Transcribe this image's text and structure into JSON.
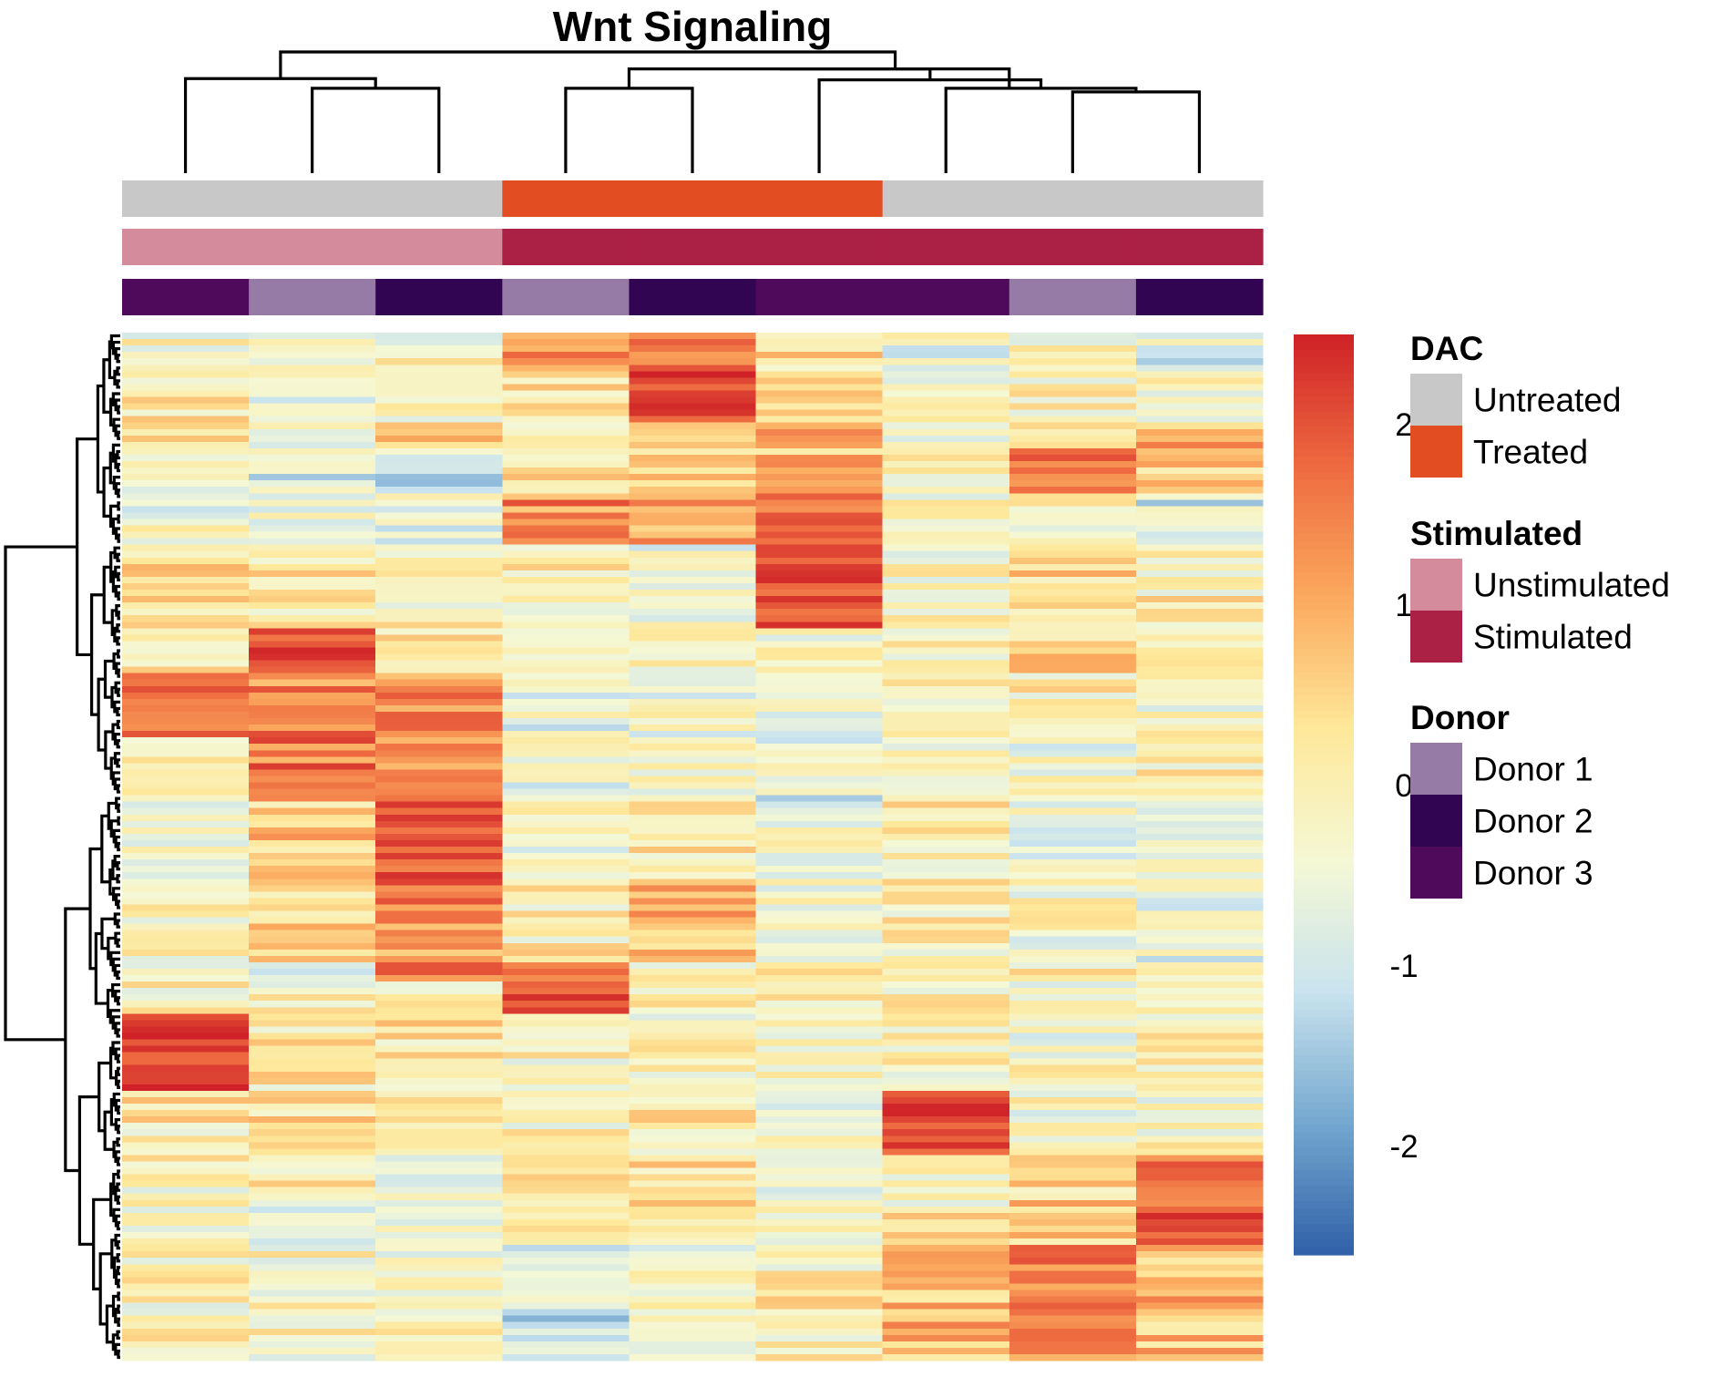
{
  "title": "Wnt Signaling",
  "chart_data": {
    "type": "heatmap",
    "title": "Wnt Signaling",
    "n_columns": 9,
    "n_rows": 160,
    "color_scale": {
      "min": -2.6,
      "max": 2.5,
      "ticks": [
        2,
        1,
        0,
        -1,
        -2
      ],
      "colors": [
        "#3060a8",
        "#74a7cf",
        "#c9e3ee",
        "#f5f8d5",
        "#fee89a",
        "#fba95e",
        "#ee6a40",
        "#cf2127"
      ]
    },
    "annotations": [
      {
        "name": "DAC",
        "values": [
          "Untreated",
          "Untreated",
          "Untreated",
          "Treated",
          "Treated",
          "Treated",
          "Untreated",
          "Untreated",
          "Untreated"
        ],
        "legend": [
          {
            "label": "Untreated",
            "color": "#c8c8c8"
          },
          {
            "label": "Treated",
            "color": "#e24e22"
          }
        ]
      },
      {
        "name": "Stimulated",
        "values": [
          "Unstimulated",
          "Unstimulated",
          "Unstimulated",
          "Stimulated",
          "Stimulated",
          "Stimulated",
          "Stimulated",
          "Stimulated",
          "Stimulated"
        ],
        "legend": [
          {
            "label": "Unstimulated",
            "color": "#d48c9c"
          },
          {
            "label": "Stimulated",
            "color": "#ab2045"
          }
        ]
      },
      {
        "name": "Donor",
        "values": [
          "Donor 3",
          "Donor 1",
          "Donor 2",
          "Donor 1",
          "Donor 2",
          "Donor 3",
          "Donor 3",
          "Donor 1",
          "Donor 2"
        ],
        "legend": [
          {
            "label": "Donor 1",
            "color": "#967ba7"
          },
          {
            "label": "Donor 2",
            "color": "#310552"
          },
          {
            "label": "Donor 3",
            "color": "#4f0a5c"
          }
        ]
      }
    ],
    "row_blocks": [
      {
        "rows": [
          0,
          5
        ],
        "values": [
          -0.2,
          -0.3,
          -0.2,
          1.2,
          1.6,
          0.5,
          -0.5,
          -0.2,
          -0.7
        ]
      },
      {
        "rows": [
          5,
          14
        ],
        "values": [
          0.0,
          -0.4,
          -0.3,
          0.3,
          2.2,
          0.1,
          -0.3,
          -0.1,
          -0.2
        ]
      },
      {
        "rows": [
          14,
          18
        ],
        "values": [
          0.1,
          -0.5,
          0.4,
          0.2,
          0.8,
          1.2,
          -0.6,
          -0.1,
          0.8
        ]
      },
      {
        "rows": [
          18,
          25
        ],
        "values": [
          -0.3,
          -0.8,
          -1.0,
          0.4,
          0.3,
          0.8,
          -0.2,
          1.6,
          0.4
        ]
      },
      {
        "rows": [
          25,
          33
        ],
        "values": [
          -0.4,
          -0.5,
          -0.5,
          1.3,
          0.9,
          1.6,
          -0.2,
          0.0,
          -0.8
        ]
      },
      {
        "rows": [
          33,
          46
        ],
        "values": [
          0.2,
          0.1,
          -0.1,
          0.0,
          -0.4,
          2.0,
          -0.3,
          0.4,
          0.0
        ]
      },
      {
        "rows": [
          46,
          53
        ],
        "values": [
          0.2,
          2.0,
          0.0,
          -0.2,
          0.0,
          -0.2,
          -0.2,
          0.6,
          -0.2
        ]
      },
      {
        "rows": [
          53,
          63
        ],
        "values": [
          1.7,
          1.4,
          1.3,
          -0.6,
          -0.4,
          -0.3,
          -0.2,
          0.0,
          -0.2
        ]
      },
      {
        "rows": [
          63,
          73
        ],
        "values": [
          0.3,
          1.5,
          1.2,
          -0.5,
          -0.3,
          -0.7,
          -0.2,
          -0.4,
          0.0
        ]
      },
      {
        "rows": [
          73,
          86
        ],
        "values": [
          -0.2,
          0.6,
          1.9,
          -0.3,
          0.2,
          -0.5,
          0.1,
          -0.4,
          -0.2
        ]
      },
      {
        "rows": [
          86,
          98
        ],
        "values": [
          -0.2,
          0.4,
          1.3,
          0.0,
          0.9,
          -0.3,
          -0.1,
          -0.3,
          -0.6
        ]
      },
      {
        "rows": [
          98,
          101
        ],
        "values": [
          -0.1,
          -0.8,
          1.6,
          1.8,
          -0.1,
          0.0,
          -0.2,
          0.0,
          0.0
        ]
      },
      {
        "rows": [
          101,
          106
        ],
        "values": [
          -0.1,
          -0.1,
          -0.3,
          2.0,
          0.0,
          -0.1,
          0.0,
          -0.2,
          -0.1
        ]
      },
      {
        "rows": [
          106,
          118
        ],
        "values": [
          2.2,
          0.1,
          0.2,
          -0.1,
          -0.2,
          -0.1,
          0.0,
          -0.3,
          -0.1
        ]
      },
      {
        "rows": [
          118,
          128
        ],
        "values": [
          0.1,
          0.2,
          0.1,
          -0.1,
          0.1,
          -0.4,
          2.1,
          -0.3,
          -0.2
        ]
      },
      {
        "rows": [
          128,
          136
        ],
        "values": [
          -0.1,
          0.1,
          -0.3,
          0.0,
          0.3,
          -0.3,
          -0.1,
          0.5,
          1.6
        ]
      },
      {
        "rows": [
          136,
          142
        ],
        "values": [
          -0.3,
          -0.4,
          -0.4,
          -0.2,
          0.0,
          -0.2,
          0.6,
          0.6,
          2.0
        ]
      },
      {
        "rows": [
          142,
          160
        ],
        "values": [
          -0.1,
          -0.2,
          -0.2,
          -1.0,
          -0.3,
          0.0,
          0.8,
          1.4,
          0.8
        ]
      }
    ]
  }
}
